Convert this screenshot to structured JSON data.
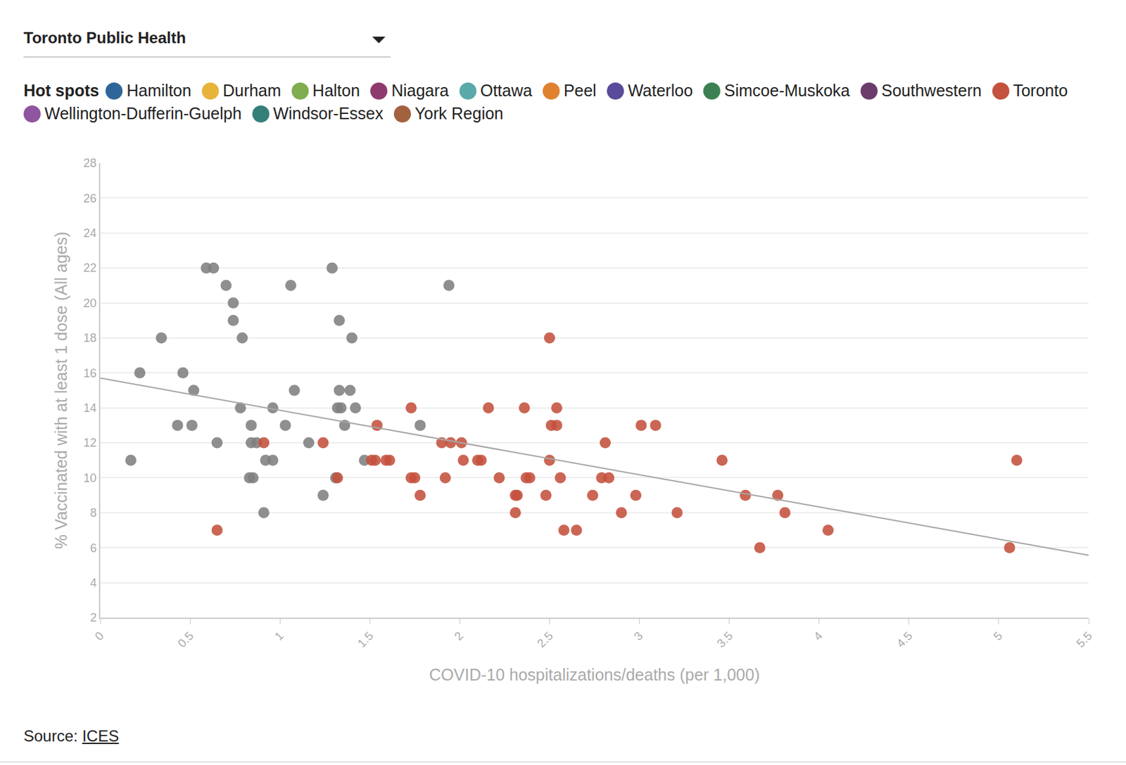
{
  "chart_data": {
    "type": "scatter",
    "selector": "Toronto Public Health",
    "legend_title": "Hot spots",
    "legend_items": [
      {
        "name": "Hamilton",
        "color": "#2f6699"
      },
      {
        "name": "Durham",
        "color": "#e8b33b"
      },
      {
        "name": "Halton",
        "color": "#7fad4f"
      },
      {
        "name": "Niagara",
        "color": "#8e3a6e"
      },
      {
        "name": "Ottawa",
        "color": "#5aa9a8"
      },
      {
        "name": "Peel",
        "color": "#de8230"
      },
      {
        "name": "Waterloo",
        "color": "#5a4a9b"
      },
      {
        "name": "Simcoe-Muskoka",
        "color": "#3c8052"
      },
      {
        "name": "Southwestern",
        "color": "#6a3d6a"
      },
      {
        "name": "Toronto",
        "color": "#c4513d"
      },
      {
        "name": "Wellington-Dufferin-Guelph",
        "color": "#8f55a0"
      },
      {
        "name": "Windsor-Essex",
        "color": "#357f7a"
      },
      {
        "name": "York Region",
        "color": "#a3623f"
      }
    ],
    "x_label": "COVID-10 hospitalizations/deaths (per 1,000)",
    "y_label": "% Vaccinated with at least 1 dose (All ages)",
    "xlim": [
      0,
      5.5
    ],
    "xticks": [
      0,
      0.5,
      1,
      1.5,
      2,
      2.5,
      3,
      3.5,
      4,
      4.5,
      5,
      5.5
    ],
    "ylim": [
      2,
      28
    ],
    "yticks": [
      2,
      4,
      6,
      8,
      10,
      12,
      14,
      16,
      18,
      20,
      22,
      24,
      26,
      28
    ],
    "grid": true,
    "source_label": "Source:",
    "source": "ICES",
    "series": [
      {
        "color": "#7f7f7f",
        "marker": "circle",
        "x": [
          0.17,
          0.22,
          0.34,
          0.46,
          0.43,
          0.52,
          0.51,
          0.59,
          0.63,
          0.65,
          0.7,
          0.74,
          0.74,
          0.79,
          0.78,
          0.84,
          0.84,
          0.87,
          0.83,
          0.85,
          0.91,
          0.92,
          0.96,
          0.96,
          1.03,
          1.06,
          1.08,
          1.16,
          1.24,
          1.29,
          1.33,
          1.32,
          1.33,
          1.34,
          1.31,
          1.36,
          1.4,
          1.39,
          1.42,
          1.47,
          1.94,
          1.78
        ],
        "values": [
          11,
          16,
          18,
          16,
          13,
          15,
          13,
          22,
          22,
          12,
          21,
          20,
          19,
          18,
          14,
          13,
          12,
          12,
          10,
          10,
          8,
          11,
          11,
          14,
          13,
          21,
          15,
          12,
          9,
          22,
          19,
          14,
          15,
          14,
          10,
          13,
          18,
          15,
          14,
          11,
          21,
          13
        ]
      },
      {
        "name": "Toronto",
        "color": "#c4513d",
        "marker": "circle",
        "x": [
          0.65,
          0.91,
          1.24,
          1.32,
          1.51,
          1.53,
          1.54,
          1.59,
          1.61,
          1.73,
          1.73,
          1.75,
          1.78,
          1.9,
          1.95,
          1.92,
          2.01,
          2.02,
          2.1,
          2.12,
          2.16,
          2.22,
          2.31,
          2.32,
          2.31,
          2.36,
          2.37,
          2.39,
          2.48,
          2.5,
          2.5,
          2.51,
          2.54,
          2.54,
          2.56,
          2.58,
          2.65,
          2.74,
          2.79,
          2.81,
          2.83,
          2.9,
          2.98,
          3.01,
          3.09,
          3.21,
          3.46,
          3.59,
          3.67,
          3.77,
          3.81,
          4.05,
          5.06,
          5.1
        ],
        "values": [
          7,
          12,
          12,
          10,
          11,
          11,
          13,
          11,
          11,
          14,
          10,
          10,
          9,
          12,
          12,
          10,
          12,
          11,
          11,
          11,
          14,
          10,
          9,
          9,
          8,
          14,
          10,
          10,
          9,
          18,
          11,
          13,
          13,
          14,
          10,
          7,
          7,
          9,
          10,
          12,
          10,
          8,
          9,
          13,
          13,
          8,
          11,
          9,
          6,
          9,
          8,
          7,
          6,
          11
        ]
      },
      {
        "type": "line",
        "color": "#a6a6a6",
        "line_style": "solid",
        "x": [
          0,
          5.5
        ],
        "values": [
          15.7,
          5.57
        ]
      }
    ]
  }
}
